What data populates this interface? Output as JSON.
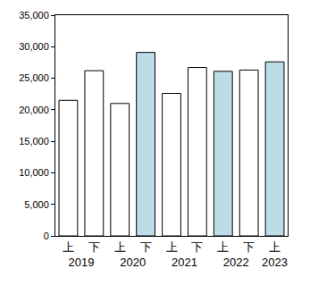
{
  "chart_data": {
    "type": "bar",
    "categories": [
      "上",
      "下",
      "上",
      "下",
      "上",
      "下",
      "上",
      "下",
      "上"
    ],
    "category_groups": [
      "2019",
      "2019",
      "2020",
      "2020",
      "2021",
      "2021",
      "2022",
      "2022",
      "2023"
    ],
    "values": [
      21500,
      26200,
      21000,
      29100,
      22600,
      26700,
      26100,
      26300,
      27600
    ],
    "colors": [
      "#ffffff",
      "#ffffff",
      "#ffffff",
      "#bcdde6",
      "#ffffff",
      "#ffffff",
      "#bcdde6",
      "#ffffff",
      "#bcdde6"
    ],
    "ylim": [
      0,
      35000
    ],
    "yticks": [
      0,
      {
        "value": 5000,
        "label": "5,000"
      },
      {
        "value": 10000,
        "label": "10,000"
      },
      {
        "value": 15000,
        "label": "15,000"
      },
      {
        "value": 20000,
        "label": "20,000"
      },
      {
        "value": 25000,
        "label": "25,000"
      },
      {
        "value": 30000,
        "label": "30,000"
      },
      {
        "value": 35000,
        "label": "35,000"
      }
    ],
    "grid": false
  }
}
